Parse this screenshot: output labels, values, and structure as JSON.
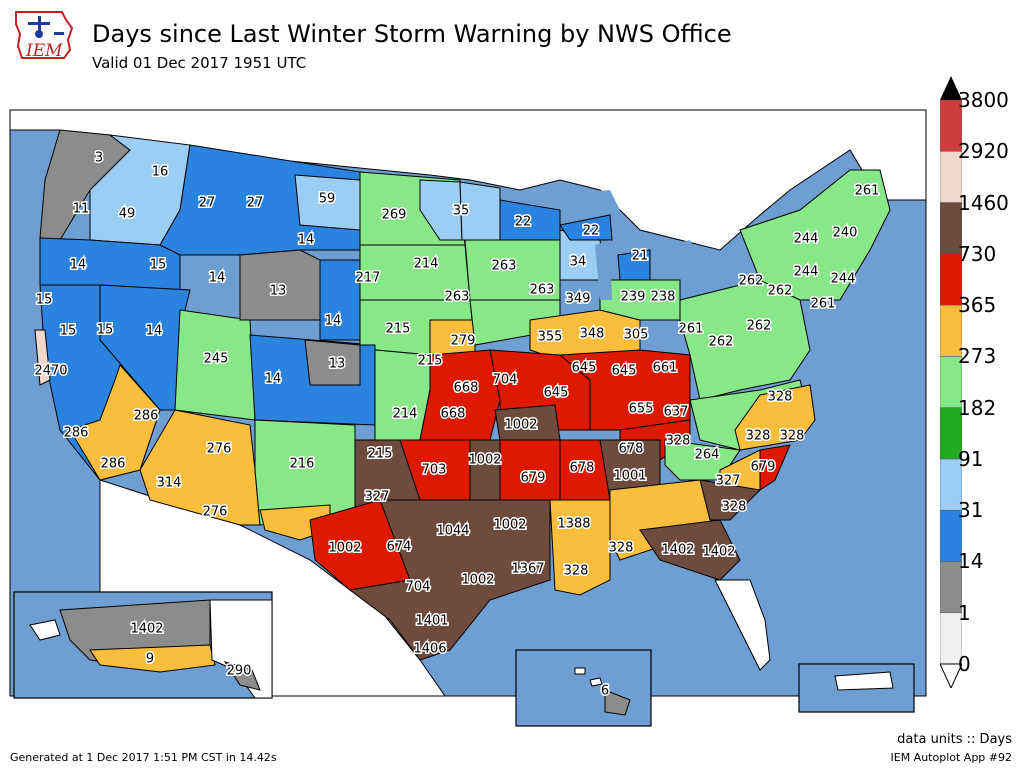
{
  "header": {
    "title": "Days since Last Winter Storm Warning by NWS Office",
    "subtitle": "Valid 01 Dec 2017 1951 UTC",
    "logo_text": "IEM"
  },
  "legend": {
    "units_label": "data units :: Days",
    "bins": [
      {
        "label": "0",
        "color": "#f0f0f0"
      },
      {
        "label": "1",
        "color": "#8c8c8c"
      },
      {
        "label": "14",
        "color": "#2b83e0"
      },
      {
        "label": "31",
        "color": "#9ccdf2"
      },
      {
        "label": "91",
        "color": "#22aa22"
      },
      {
        "label": "182",
        "color": "#88e888"
      },
      {
        "label": "273",
        "color": "#fbbd3c"
      },
      {
        "label": "365",
        "color": "#dd1a00"
      },
      {
        "label": "730",
        "color": "#6e4b3c"
      },
      {
        "label": "1460",
        "color": "#f0d8cc"
      },
      {
        "label": "2920",
        "color": "#cc3e3e"
      },
      {
        "label": "3800",
        "color": "#000000"
      }
    ]
  },
  "colors": {
    "water": "#6f9ed2",
    "border": "#000000"
  },
  "wfo_values": [
    "3",
    "16",
    "11",
    "49",
    "27",
    "27",
    "59",
    "269",
    "35",
    "22",
    "14",
    "15",
    "14",
    "13",
    "14",
    "15",
    "14",
    "217",
    "214",
    "263",
    "263",
    "22",
    "34",
    "21",
    "2470",
    "15",
    "15",
    "245",
    "14",
    "13",
    "14",
    "215",
    "215",
    "279",
    "263",
    "355",
    "349",
    "348",
    "239",
    "238",
    "305",
    "261",
    "262",
    "262",
    "262",
    "261",
    "244",
    "240",
    "261",
    "244",
    "244",
    "262",
    "286",
    "286",
    "286",
    "276",
    "276",
    "314",
    "216",
    "215",
    "214",
    "668",
    "668",
    "704",
    "645",
    "645",
    "661",
    "645",
    "655",
    "637",
    "1002",
    "1002",
    "703",
    "679",
    "678",
    "678",
    "1001",
    "328",
    "328",
    "264",
    "327",
    "328",
    "328",
    "679",
    "327",
    "1044",
    "1002",
    "1002",
    "674",
    "704",
    "1002",
    "1367",
    "1388",
    "328",
    "328",
    "328",
    "1402",
    "1402",
    "1401",
    "1406",
    "1402",
    "9",
    "290",
    "6",
    "3"
  ],
  "footer": {
    "generated": "Generated at 1 Dec 2017 1:51 PM CST in 14.42s",
    "app": "IEM Autoplot App #92"
  }
}
